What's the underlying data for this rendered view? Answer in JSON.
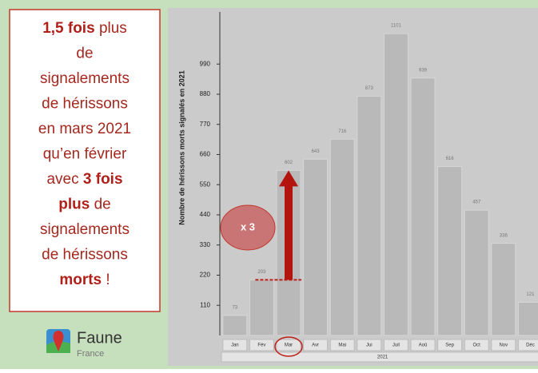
{
  "panel": {
    "lines": [
      [
        {
          "text": "1,5 fois",
          "bold": true
        },
        {
          "text": " plus",
          "bold": false
        }
      ],
      [
        {
          "text": "de",
          "bold": false
        }
      ],
      [
        {
          "text": "signalements",
          "bold": false
        }
      ],
      [
        {
          "text": "de hérissons",
          "bold": false
        }
      ],
      [
        {
          "text": "en mars 2021",
          "bold": false
        }
      ],
      [
        {
          "text": "qu’en février",
          "bold": false
        }
      ],
      [
        {
          "text": "avec ",
          "bold": false
        },
        {
          "text": "3 fois",
          "bold": true
        }
      ],
      [
        {
          "text": "plus",
          "bold": true
        },
        {
          "text": " de",
          "bold": false
        }
      ],
      [
        {
          "text": "signalements",
          "bold": false
        }
      ],
      [
        {
          "text": "de hérissons",
          "bold": false
        }
      ],
      [
        {
          "text": "morts",
          "bold": true
        },
        {
          "text": " !",
          "bold": false
        }
      ]
    ]
  },
  "logo": {
    "name": "Faune",
    "sub": "France"
  },
  "chart_data": {
    "type": "bar",
    "ylabel": "Nombre de hérissons morts signalés en 2021",
    "categories": [
      "Jan",
      "Fév",
      "Mar",
      "Avr",
      "Mai",
      "Jui",
      "Juil",
      "Aoû",
      "Sep",
      "Oct",
      "Nov",
      "Déc"
    ],
    "values": [
      73,
      203,
      602,
      643,
      716,
      873,
      1101,
      939,
      616,
      457,
      336,
      121
    ],
    "xlabel": "2021",
    "annotation": "x 3",
    "color": "#b9b9b9",
    "ylim": [
      0,
      1180
    ],
    "yticks": [
      110,
      220,
      330,
      440,
      550,
      660,
      770,
      880,
      990
    ]
  }
}
